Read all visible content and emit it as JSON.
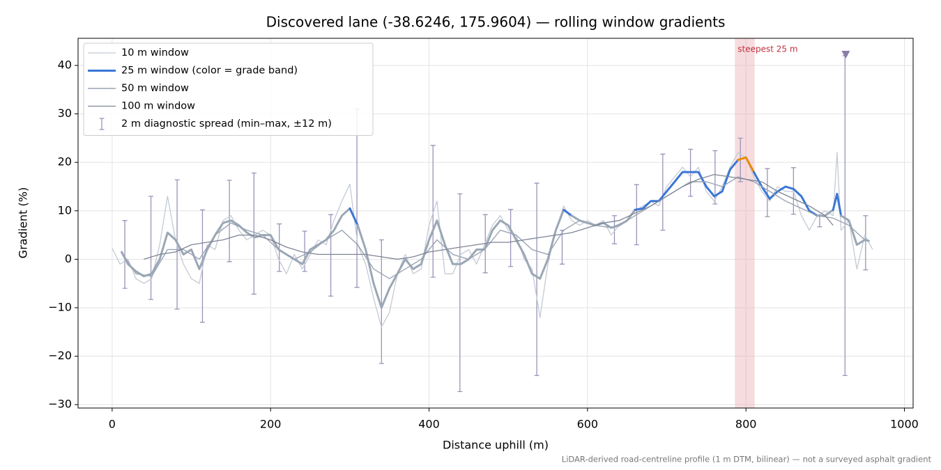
{
  "chart_data": {
    "type": "line",
    "title": "Discovered lane (-38.6246, 175.9604) — rolling window gradients",
    "xlabel": "Distance uphill (m)",
    "ylabel": "Gradient (%)",
    "footnote": "LiDAR-derived road-centreline profile (1 m DTM, bilinear) — not a surveyed asphalt gradient",
    "xlim": [
      -43,
      1011
    ],
    "ylim": [
      -30.7,
      45.6
    ],
    "xticks": [
      0,
      200,
      400,
      600,
      800,
      1000
    ],
    "yticks": [
      {
        "value": -30,
        "label": "−30"
      },
      {
        "value": -20,
        "label": "−20"
      },
      {
        "value": -10,
        "label": "−10"
      },
      0,
      10,
      20,
      30,
      40
    ],
    "grid": true,
    "legend": "upper left",
    "series": [
      {
        "name": "10 m window",
        "color": "#c3cad4",
        "width": 1.3,
        "x": [
          0,
          10,
          20,
          30,
          40,
          50,
          60,
          70,
          80,
          90,
          100,
          110,
          120,
          130,
          140,
          150,
          160,
          170,
          180,
          190,
          200,
          210,
          220,
          230,
          240,
          250,
          260,
          270,
          280,
          290,
          300,
          310,
          320,
          330,
          340,
          350,
          360,
          370,
          380,
          390,
          400,
          410,
          420,
          430,
          440,
          450,
          460,
          470,
          480,
          490,
          500,
          510,
          520,
          530,
          540,
          550,
          560,
          570,
          580,
          590,
          600,
          610,
          620,
          630,
          640,
          650,
          660,
          670,
          680,
          690,
          700,
          710,
          720,
          730,
          740,
          750,
          760,
          770,
          780,
          790,
          800,
          810,
          820,
          830,
          840,
          850,
          860,
          870,
          880,
          890,
          900,
          910,
          915,
          920,
          930,
          940,
          950,
          960
        ],
        "values": [
          2.3,
          -1,
          0,
          -4,
          -5,
          -4,
          3,
          13,
          4,
          -1,
          -4,
          -5,
          3,
          2,
          8,
          9,
          6,
          4,
          5,
          6,
          5,
          0,
          -3,
          1,
          -2,
          1,
          4,
          3,
          8,
          12,
          15.5,
          3,
          -1,
          -8,
          -14,
          -11,
          -3,
          1,
          -3,
          -2,
          7,
          12,
          -3,
          -3,
          1,
          2,
          -1,
          3,
          7,
          9,
          6,
          5,
          0,
          -2,
          -12,
          -1,
          6,
          11,
          8,
          7,
          8,
          7,
          8,
          5,
          7,
          8,
          10,
          11,
          12,
          11,
          15,
          17,
          19,
          17,
          19,
          14,
          12,
          15,
          19,
          22,
          21,
          17,
          14,
          12,
          15,
          14,
          14,
          9,
          6,
          9,
          10,
          9,
          22,
          6,
          8,
          -2,
          5,
          2
        ]
      },
      {
        "name": "25 m window (color = grade band)",
        "color": "#9aa7b5",
        "width": 3,
        "band_edges": [
          10,
          20
        ],
        "band_colors": [
          "#9aa7b5",
          "#3a76d6",
          "#e88a0c"
        ],
        "x": [
          12,
          20,
          30,
          40,
          50,
          60,
          70,
          80,
          90,
          100,
          110,
          120,
          130,
          140,
          150,
          160,
          170,
          180,
          190,
          200,
          210,
          220,
          230,
          240,
          250,
          260,
          270,
          280,
          290,
          300,
          310,
          320,
          330,
          340,
          350,
          360,
          370,
          380,
          390,
          400,
          410,
          420,
          430,
          440,
          450,
          460,
          470,
          480,
          490,
          500,
          510,
          520,
          530,
          540,
          550,
          560,
          570,
          580,
          590,
          600,
          610,
          620,
          630,
          640,
          650,
          660,
          670,
          680,
          690,
          700,
          710,
          720,
          730,
          740,
          750,
          760,
          770,
          780,
          790,
          800,
          810,
          820,
          830,
          840,
          850,
          860,
          870,
          880,
          890,
          900,
          910,
          915,
          920,
          930,
          940,
          950,
          955
        ],
        "values": [
          1.5,
          -1,
          -2.5,
          -3.5,
          -3,
          0,
          5.5,
          4,
          1,
          2,
          -2,
          2,
          5,
          7.5,
          8,
          7,
          5.5,
          4.5,
          5,
          5,
          2,
          1,
          0,
          -1,
          2,
          3,
          4,
          6,
          9,
          10.5,
          7,
          2,
          -5,
          -10,
          -6,
          -3,
          0,
          -2,
          -1,
          4,
          8,
          3,
          -1,
          -1,
          0,
          2,
          2,
          6,
          8,
          7,
          4,
          1,
          -3,
          -4,
          0,
          6,
          10.2,
          9,
          8,
          7.5,
          7,
          7.5,
          6.5,
          7,
          8,
          10.2,
          10.5,
          12,
          12,
          14,
          16,
          18,
          18,
          18,
          15,
          13,
          14,
          18.5,
          20.5,
          21,
          18,
          15,
          12.5,
          14,
          15,
          14.5,
          13,
          10,
          9,
          9,
          10.2,
          13.5,
          9,
          8,
          3,
          4,
          3.8
        ]
      },
      {
        "name": "50 m window",
        "color": "#9aa3b4",
        "width": 1.4,
        "x": [
          12,
          30,
          50,
          70,
          90,
          110,
          130,
          150,
          170,
          190,
          210,
          230,
          250,
          270,
          290,
          310,
          330,
          350,
          370,
          390,
          410,
          430,
          450,
          470,
          490,
          510,
          530,
          550,
          570,
          590,
          610,
          630,
          650,
          670,
          690,
          710,
          730,
          750,
          770,
          790,
          810,
          830,
          850,
          870,
          890,
          910,
          930,
          950
        ],
        "values": [
          1.5,
          -3,
          -3.5,
          2,
          2,
          0,
          5,
          7.5,
          6,
          5,
          2,
          0,
          1.5,
          4,
          6,
          3,
          -2,
          -4,
          -2,
          0,
          4,
          1,
          0,
          2,
          6,
          5,
          2,
          1,
          6,
          8,
          7,
          6.5,
          8,
          10,
          12,
          14,
          16,
          16,
          15,
          17,
          16,
          14,
          12,
          10.5,
          9,
          8.5,
          7,
          4
        ]
      },
      {
        "name": "100 m window",
        "color": "#7d8494",
        "width": 1.3,
        "x": [
          40,
          60,
          80,
          100,
          120,
          140,
          160,
          180,
          200,
          220,
          240,
          260,
          280,
          300,
          320,
          340,
          360,
          380,
          400,
          420,
          440,
          460,
          480,
          500,
          520,
          540,
          560,
          580,
          600,
          620,
          640,
          660,
          680,
          700,
          720,
          740,
          760,
          780,
          800,
          820,
          840,
          860,
          880,
          900,
          910
        ],
        "values": [
          0,
          1,
          1.5,
          3,
          3.5,
          4,
          5,
          5,
          4,
          2.5,
          1.5,
          1,
          1,
          1,
          1,
          0.5,
          0,
          0.5,
          1.5,
          2,
          2.5,
          3,
          3.5,
          3.5,
          4,
          4.5,
          5,
          5.5,
          6.5,
          7.5,
          8,
          9.5,
          11,
          13,
          15,
          16.5,
          17.5,
          17,
          16.5,
          16,
          14,
          12.5,
          11,
          9,
          7
        ]
      }
    ],
    "spread": {
      "name": "2 m diagnostic spread (min–max, ±12 m)",
      "color": "#9b93b8",
      "x": [
        16,
        49,
        82,
        114,
        148,
        179,
        211,
        243,
        276,
        309,
        340,
        405,
        439,
        471,
        503,
        536,
        568,
        634,
        662,
        695,
        730,
        761,
        793,
        827,
        860,
        893,
        925,
        951
      ],
      "min": [
        -6,
        -8.3,
        -10.3,
        -13,
        -0.5,
        -7.2,
        -2.5,
        -2.5,
        -7.6,
        -5.8,
        -21.5,
        -3.7,
        -27.3,
        -2.8,
        -1.5,
        -24,
        -1,
        3.2,
        3,
        6,
        13,
        11.4,
        16,
        8.8,
        9.3,
        6.7,
        -24,
        -2.2
      ],
      "max": [
        8,
        13,
        16.4,
        10.2,
        16.3,
        17.8,
        7.3,
        5.8,
        9.2,
        31,
        4,
        23.5,
        13.5,
        9.2,
        10.3,
        15.7,
        6,
        9,
        15.4,
        21.7,
        22.7,
        22.4,
        25,
        18.7,
        18.9,
        9,
        42,
        9
      ]
    },
    "highlight": {
      "x0": 786,
      "x1": 811,
      "label": "steepest 25 m",
      "color": "#e8a7ae",
      "label_color": "#c0303f"
    },
    "marker": {
      "x": 926,
      "y": 42.3,
      "color": "#8a7ba8"
    }
  }
}
